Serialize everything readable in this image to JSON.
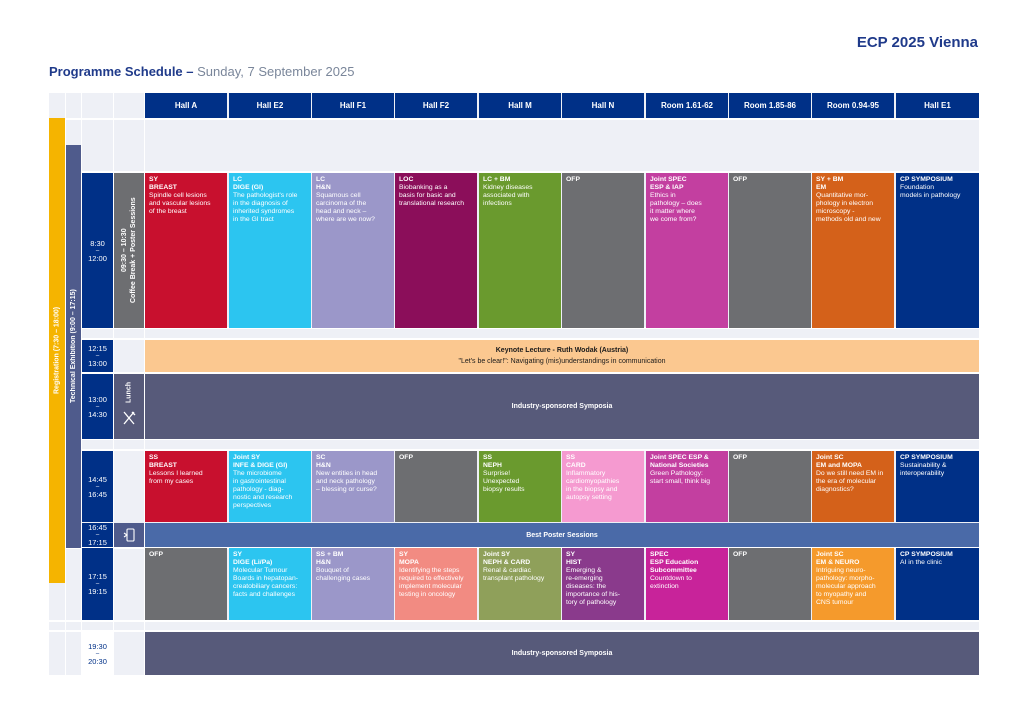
{
  "brand": "ECP 2025 Vienna",
  "heading": {
    "title": "Programme Schedule –",
    "subtitle": "Sunday, 7 September 2025"
  },
  "halls": [
    "Hall A",
    "Hall E2",
    "Hall F1",
    "Hall F2",
    "Hall M",
    "Hall N",
    "Room 1.61-62",
    "Room 1.85-86",
    "Room 0.94-95",
    "Hall E1"
  ],
  "side": {
    "registration": "Registration (7:30 – 18:00)",
    "exhibition": "Technical Exhibition (9:00 – 17:15)",
    "coffee": "09:30 – 10:30\nCoffee Break + Poster Sessions",
    "lunch": "Lunch",
    "lunch_icon": "cutlery-icon",
    "poster_icon": "poster-icon"
  },
  "times": {
    "t1": {
      "start": "8:30",
      "end": "12:00"
    },
    "t2": {
      "start": "12:15",
      "end": "13:00"
    },
    "t3": {
      "start": "13:00",
      "end": "14:30"
    },
    "t4": {
      "start": "14:45",
      "end": "16:45"
    },
    "t5": {
      "start": "16:45",
      "end": "17:15"
    },
    "t6": {
      "start": "17:15",
      "end": "19:15"
    },
    "t7": {
      "start": "19:30",
      "end": "20:30"
    }
  },
  "keynote": {
    "title": "Keynote Lecture - Ruth Wodak (Austria)",
    "subtitle": "\"Let's be clear!\": Navigating (mis)understandings in communication"
  },
  "industry1": "Industry-sponsored Symposia",
  "poster": "Best Poster Sessions",
  "industry2": "Industry-sponsored Symposia",
  "block1": [
    {
      "tag": "SY\nBREAST",
      "desc": "Spindle cell lesions\nand vascular lesions\nof the breast",
      "color": "#c8102e"
    },
    {
      "tag": "LC\nDIGE (GI)",
      "desc": "The pathologist's role\nin the diagnosis of\ninherited syndromes\nin the GI tract",
      "color": "#2cc5f0"
    },
    {
      "tag": "LC\nH&N",
      "desc": "Squamous cell\ncarcinoma of the\nhead and neck –\nwhere are we now?",
      "color": "#9b97c9"
    },
    {
      "tag": "LOC",
      "desc": "Biobanking as a\nbasis for basic and\ntranslational research",
      "color": "#8b0e5a"
    },
    {
      "tag": "LC + BM",
      "desc": "Kidney diseases\nassociated with\ninfections",
      "color": "#6a9a2e"
    },
    {
      "tag": "OFP",
      "desc": "",
      "color": "#6d6e71"
    },
    {
      "tag": "Joint SPEC\nESP & IAP",
      "desc": "Ethics in\npathology – does\nit matter where\nwe come from?",
      "color": "#c33fa0"
    },
    {
      "tag": "OFP",
      "desc": "",
      "color": "#6d6e71"
    },
    {
      "tag": "SY + BM\nEM",
      "desc": "Quantitative mor-\nphology in electron\nmicroscopy -\nmethods old and new",
      "color": "#d4611a"
    },
    {
      "tag": "CP SYMPOSIUM",
      "desc": "Foundation\nmodels in pathology",
      "color": "#003087"
    }
  ],
  "block2": [
    {
      "tag": "SS\nBREAST",
      "desc": "Lessons I learned\nfrom my cases",
      "color": "#c8102e"
    },
    {
      "tag": "Joint SY\nINFE & DIGE (GI)",
      "desc": "The microbiome\nin gastrointestinal\npathology - diag-\nnostic and research\nperspectives",
      "color": "#2cc5f0"
    },
    {
      "tag": "SC\nH&N",
      "desc": "New entities in head\nand neck pathology\n– blessing or curse?",
      "color": "#9b97c9"
    },
    {
      "tag": "OFP",
      "desc": "",
      "color": "#6d6e71"
    },
    {
      "tag": "SS\nNEPH",
      "desc": "Surprise!\nUnexpected\nbiopsy results",
      "color": "#6a9a2e"
    },
    {
      "tag": "SS\nCARD",
      "desc": "Inflammatory\ncardiomyopathies\nin the biopsy and\nautopsy setting",
      "color": "#f59ad0"
    },
    {
      "tag": "Joint SPEC ESP &\nNational Societies",
      "desc": "Green Pathology:\nstart small, think big",
      "color": "#c33fa0"
    },
    {
      "tag": "OFP",
      "desc": "",
      "color": "#6d6e71"
    },
    {
      "tag": "Joint SC\nEM and MOPA",
      "desc": "Do we still need EM in\nthe era of molecular\ndiagnostics?",
      "color": "#d4611a"
    },
    {
      "tag": "CP SYMPOSIUM",
      "desc": "Sustainability &\ninteroperability",
      "color": "#003087"
    }
  ],
  "block3": [
    {
      "tag": "OFP",
      "desc": "",
      "color": "#6d6e71"
    },
    {
      "tag": "SY\nDIGE (Li/Pa)",
      "desc": "Molecular Tumour\nBoards in hepatopan-\ncreatobiliary cancers:\nfacts and challenges",
      "color": "#2cc5f0"
    },
    {
      "tag": "SS + BM\nH&N",
      "desc": "Bouquet of\nchallenging cases",
      "color": "#9b97c9"
    },
    {
      "tag": "SY\nMOPA",
      "desc": "Identifying the steps\nrequired to effectively\nimplement molecular\ntesting in oncology",
      "color": "#f28b82"
    },
    {
      "tag": "Joint SY\nNEPH & CARD",
      "desc": "Renal & cardiac\ntransplant pathology",
      "color": "#8fa05a"
    },
    {
      "tag": "SY\nHIST",
      "desc": "Emerging &\nre-emerging\ndiseases: the\nimportance of his-\ntory of pathology",
      "color": "#8a3a8c"
    },
    {
      "tag": "SPEC\nESP Education\nSubcommittee",
      "desc": "Countdown to\nextinction",
      "color": "#c8239a"
    },
    {
      "tag": "OFP",
      "desc": "",
      "color": "#6d6e71"
    },
    {
      "tag": "Joint SC\nEM & NEURO",
      "desc": "Intriguing neuro-\npathology: morpho-\nmolecular approach\nto myopathy and\nCNS tumour",
      "color": "#f59a2c"
    },
    {
      "tag": "CP SYMPOSIUM",
      "desc": "AI in the clinic",
      "color": "#003087"
    }
  ],
  "colors": {
    "navy": "#003087",
    "slate": "#575a7a",
    "keynote": "#fbc890",
    "poster": "#4a6aa8",
    "registration": "#f5b400",
    "exhibition": "#4f5b8c",
    "coffee": "#6d6e71"
  }
}
